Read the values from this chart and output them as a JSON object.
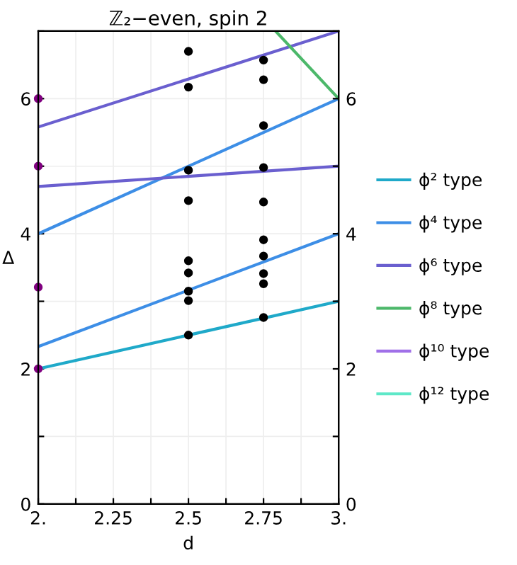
{
  "chart_data": {
    "type": "line",
    "title": "ℤ₂−even, spin 2",
    "xlabel": "d",
    "ylabel": "Δ",
    "xlim": [
      2,
      3
    ],
    "xticks": [
      {
        "value": 2,
        "label": "2."
      },
      {
        "value": 2.125,
        "label": null
      },
      2.25,
      {
        "value": 2.375,
        "label": null
      },
      2.5,
      {
        "value": 2.625,
        "label": null
      },
      2.75,
      {
        "value": 2.875,
        "label": null
      },
      {
        "value": 3,
        "label": "3."
      }
    ],
    "ylim": [
      0,
      7
    ],
    "yticks": [
      0,
      {
        "value": 1,
        "label": null
      },
      2,
      {
        "value": 3,
        "label": null
      },
      4,
      {
        "value": 5,
        "label": null
      },
      6,
      {
        "value": 7,
        "label": null
      }
    ],
    "y2lim": [
      0,
      7
    ],
    "y2ticks": [
      0,
      {
        "value": 1,
        "label": null
      },
      2,
      {
        "value": 3,
        "label": null
      },
      4,
      {
        "value": 5,
        "label": null
      },
      6,
      {
        "value": 7,
        "label": null
      }
    ],
    "grid": true,
    "legend": "right",
    "series": [
      {
        "name": "ϕ² type",
        "color": "#1fa9c9",
        "x": [
          2,
          3
        ],
        "values": [
          2,
          3
        ]
      },
      {
        "name": "ϕ⁴ type",
        "color": "#3d8ee6",
        "x": [
          2,
          3
        ],
        "values": [
          2.33,
          4
        ]
      },
      {
        "color": "#3d8ee6",
        "x": [
          2,
          3
        ],
        "values": [
          4,
          6
        ]
      },
      {
        "name": "ϕ⁶ type",
        "color": "#6a5fcf",
        "x": [
          2,
          3
        ],
        "values": [
          5.58,
          7
        ]
      },
      {
        "color": "#6a5fcf",
        "x": [
          2,
          3
        ],
        "values": [
          4.7,
          5
        ]
      },
      {
        "name": "ϕ⁸ type",
        "color": "#4cb86a",
        "x": [
          2.79,
          3
        ],
        "values": [
          7,
          6
        ]
      },
      {
        "name": "ϕ¹⁰ type",
        "color": "#a070e8"
      },
      {
        "name": "ϕ¹² type",
        "color": "#5ee8c8"
      },
      {
        "type": "scatter",
        "color": "#000000",
        "x": [
          2.5,
          2.5,
          2.5,
          2.5,
          2.5,
          2.5,
          2.5,
          2.5,
          2.5,
          2.75,
          2.75,
          2.75,
          2.75,
          2.75,
          2.75,
          2.75,
          2.75,
          2.75,
          2.75
        ],
        "values": [
          6.7,
          6.17,
          4.94,
          4.49,
          3.6,
          3.42,
          3.15,
          3.01,
          2.5,
          6.57,
          6.28,
          5.6,
          4.98,
          4.47,
          3.91,
          3.67,
          3.41,
          3.26,
          2.76
        ]
      },
      {
        "type": "scatter",
        "color": "#800080",
        "x": [
          2,
          2,
          2,
          2
        ],
        "values": [
          6,
          5,
          3.21,
          2
        ]
      }
    ]
  }
}
